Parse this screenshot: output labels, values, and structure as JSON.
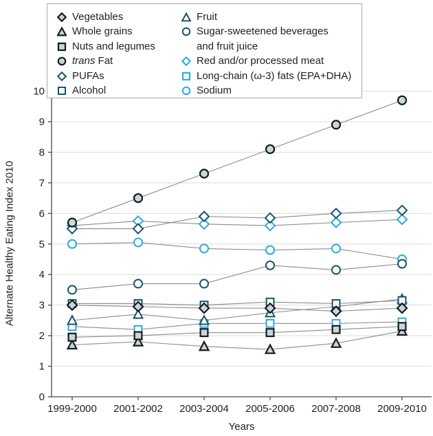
{
  "axes": {
    "y_title": "Alternate Healthy Eating Index 2010",
    "x_title": "Years"
  },
  "colors": {
    "marker_dark": "#1a1a1a",
    "marker_pale_fill": "#c5d6de",
    "open_dark": "#16536e",
    "open_blue": "#29a9e1",
    "line": "#8c8c8c",
    "grid": "#dcdcdc",
    "axis": "#4a4a4a",
    "text": "#1f1f1f"
  },
  "legend": {
    "left": [
      {
        "key": "vegetables",
        "label": "Vegetables"
      },
      {
        "key": "whole_grains",
        "label": "Whole grains"
      },
      {
        "key": "nuts_legumes",
        "label": "Nuts and legumes"
      },
      {
        "key": "trans_fat",
        "label_italic": "trans",
        "label_rest": " Fat"
      },
      {
        "key": "pufas",
        "label": "PUFAs"
      },
      {
        "key": "alcohol",
        "label": "Alcohol"
      }
    ],
    "right": [
      {
        "key": "fruit",
        "label": "Fruit"
      },
      {
        "key": "ssb",
        "label": "Sugar-sweetened beverages",
        "label_line2": "and fruit juice"
      },
      {
        "key": "red_meat",
        "label": "Red and/or processed meat"
      },
      {
        "key": "long_chain",
        "label": "Long-chain (ω-3) fats (EPA+DHA)"
      },
      {
        "key": "sodium",
        "label": "Sodium"
      }
    ]
  },
  "chart_data": {
    "type": "line",
    "title": "",
    "xlabel": "Years",
    "ylabel": "Alternate Healthy Eating Index 2010",
    "categories": [
      "1999-2000",
      "2001-2002",
      "2003-2004",
      "2005-2006",
      "2007-2008",
      "2009-2010"
    ],
    "ylim": [
      0,
      10
    ],
    "yticks": [
      0,
      1,
      2,
      3,
      4,
      5,
      6,
      7,
      8,
      9,
      10
    ],
    "grid": "horizontal",
    "legend_position": "top-left-inside",
    "line_color": "#8c8c8c",
    "series": [
      {
        "name": "Vegetables",
        "key": "vegetables",
        "marker": "diamond",
        "style": "filled",
        "values": [
          3.0,
          2.95,
          2.9,
          2.9,
          2.8,
          2.9
        ]
      },
      {
        "name": "Whole grains",
        "key": "whole_grains",
        "marker": "triangle",
        "style": "filled",
        "values": [
          1.7,
          1.8,
          1.65,
          1.55,
          1.75,
          2.15
        ]
      },
      {
        "name": "Nuts and legumes",
        "key": "nuts_legumes",
        "marker": "square",
        "style": "filled",
        "values": [
          1.95,
          2.0,
          2.1,
          2.1,
          2.2,
          2.3
        ]
      },
      {
        "name": "trans Fat",
        "key": "trans_fat",
        "marker": "circle",
        "style": "filled",
        "values": [
          5.7,
          6.5,
          7.3,
          8.1,
          8.9,
          9.7
        ]
      },
      {
        "name": "PUFAs",
        "key": "pufas",
        "marker": "diamond",
        "style": "open_dark",
        "values": [
          5.5,
          5.5,
          5.9,
          5.85,
          6.0,
          6.1
        ]
      },
      {
        "name": "Alcohol",
        "key": "alcohol",
        "marker": "square",
        "style": "open_dark",
        "values": [
          3.05,
          3.05,
          3.0,
          3.1,
          3.05,
          3.15
        ]
      },
      {
        "name": "Fruit",
        "key": "fruit",
        "marker": "triangle",
        "style": "open_dark",
        "values": [
          2.5,
          2.7,
          2.5,
          2.75,
          2.95,
          3.2
        ]
      },
      {
        "name": "Sugar-sweetened beverages and fruit juice",
        "key": "ssb",
        "marker": "circle",
        "style": "open_dark",
        "values": [
          3.5,
          3.7,
          3.7,
          4.3,
          4.15,
          4.35
        ]
      },
      {
        "name": "Red and/or processed meat",
        "key": "red_meat",
        "marker": "diamond",
        "style": "open_blue",
        "values": [
          5.6,
          5.75,
          5.65,
          5.6,
          5.7,
          5.8
        ]
      },
      {
        "name": "Long-chain (ω-3) fats (EPA+DHA)",
        "key": "long_chain",
        "marker": "square",
        "style": "open_blue",
        "values": [
          2.3,
          2.2,
          2.4,
          2.4,
          2.4,
          2.45
        ]
      },
      {
        "name": "Sodium",
        "key": "sodium",
        "marker": "circle",
        "style": "open_blue",
        "values": [
          5.0,
          5.05,
          4.85,
          4.8,
          4.85,
          4.5
        ]
      }
    ]
  }
}
